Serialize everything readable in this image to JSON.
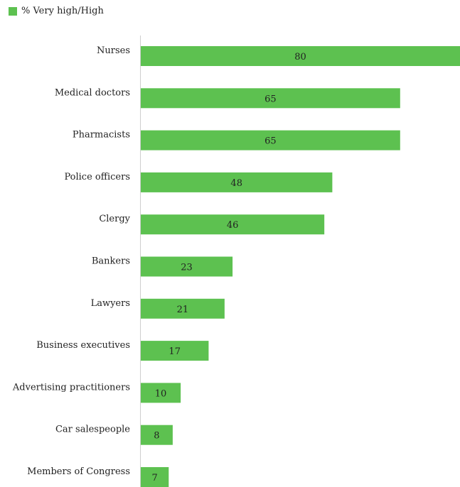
{
  "legend": {
    "label": "% Very high/High",
    "color": "#5dc150"
  },
  "chart_data": {
    "type": "bar",
    "orientation": "horizontal",
    "title": "",
    "xlabel": "",
    "ylabel": "",
    "categories": [
      "Nurses",
      "Medical doctors",
      "Pharmacists",
      "Police officers",
      "Clergy",
      "Bankers",
      "Lawyers",
      "Business executives",
      "Advertising practitioners",
      "Car salespeople",
      "Members of Congress"
    ],
    "series": [
      {
        "name": "% Very high/High",
        "values": [
          80,
          65,
          65,
          48,
          46,
          23,
          21,
          17,
          10,
          8,
          7
        ]
      }
    ],
    "xlim": [
      0,
      80
    ],
    "grid": false,
    "legend_position": "top-left"
  }
}
